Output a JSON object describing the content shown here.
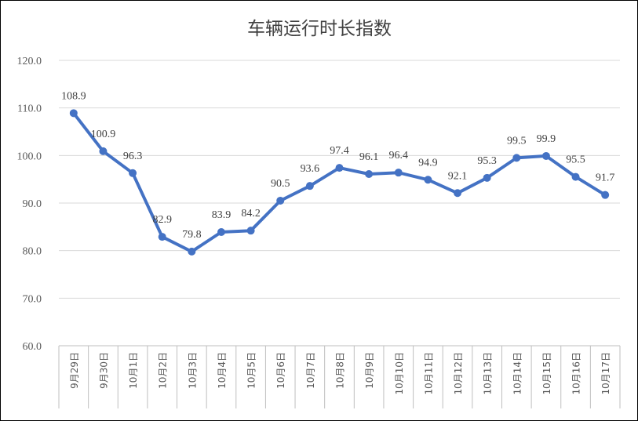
{
  "chart_data": {
    "type": "line",
    "title": "车辆运行时长指数",
    "xlabel": "",
    "ylabel": "",
    "ylim": [
      60,
      120
    ],
    "yticks": [
      "60.0",
      "70.0",
      "80.0",
      "90.0",
      "100.0",
      "110.0",
      "120.0"
    ],
    "grid": true,
    "legend": "none",
    "categories": [
      "9月29日",
      "9月30日",
      "10月1日",
      "10月2日",
      "10月3日",
      "10月4日",
      "10月5日",
      "10月6日",
      "10月7日",
      "10月8日",
      "10月9日",
      "10月10日",
      "10月11日",
      "10月12日",
      "10月13日",
      "10月14日",
      "10月15日",
      "10月16日",
      "10月17日"
    ],
    "series": [
      {
        "values": [
          108.9,
          100.9,
          96.3,
          82.9,
          79.8,
          83.9,
          84.2,
          90.5,
          93.6,
          97.4,
          96.1,
          96.4,
          94.9,
          92.1,
          95.3,
          99.5,
          99.9,
          95.5,
          91.7
        ],
        "labels": [
          "108.9",
          "100.9",
          "96.3",
          "82.9",
          "79.8",
          "83.9",
          "84.2",
          "90.5",
          "93.6",
          "97.4",
          "96.1",
          "96.4",
          "94.9",
          "92.1",
          "95.3",
          "99.5",
          "99.9",
          "95.5",
          "91.7"
        ],
        "color": "#4472c4"
      }
    ]
  }
}
